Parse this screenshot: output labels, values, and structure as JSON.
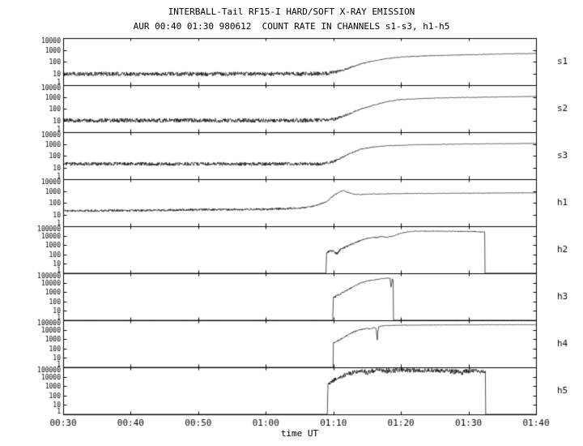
{
  "chart_data": {
    "type": "line",
    "title": "INTERBALL-Tail RF15-I HARD/SOFT X-RAY EMISSION",
    "subtitle": "AUR 00:40 01:30 980612  COUNT RATE IN CHANNELS s1-s3, h1-h5",
    "xlabel": "time UT",
    "line_color": "#000000",
    "background": "#ffffff",
    "x_range_minutes": [
      0,
      70
    ],
    "x_ticks": [
      {
        "t": 0,
        "label": "00:30"
      },
      {
        "t": 10,
        "label": "00:40"
      },
      {
        "t": 20,
        "label": "00:50"
      },
      {
        "t": 30,
        "label": "01:00"
      },
      {
        "t": 40,
        "label": "01:10"
      },
      {
        "t": 50,
        "label": "01:20"
      },
      {
        "t": 60,
        "label": "01:30"
      },
      {
        "t": 70,
        "label": "01:40"
      }
    ],
    "panels": [
      {
        "channel": "s1",
        "y_min": 1,
        "y_max": 10000,
        "yticks": [
          {
            "v": 10000,
            "label": "10000"
          },
          {
            "v": 1000,
            "label": "1000"
          },
          {
            "v": 100,
            "label": "100"
          },
          {
            "v": 10,
            "label": "10"
          },
          {
            "v": 1,
            "label": "1"
          }
        ],
        "points": [
          [
            0,
            9,
            0.18
          ],
          [
            35,
            9,
            0.18
          ],
          [
            39,
            10,
            0.18
          ],
          [
            41,
            15,
            0.12
          ],
          [
            43,
            40,
            0.06
          ],
          [
            45,
            90,
            0.04
          ],
          [
            47,
            150,
            0.03
          ],
          [
            50,
            250,
            0.03
          ],
          [
            55,
            330,
            0.03
          ],
          [
            60,
            380,
            0.025
          ],
          [
            65,
            450,
            0.02
          ],
          [
            70,
            500,
            0.02
          ]
        ]
      },
      {
        "channel": "s2",
        "y_min": 1,
        "y_max": 10000,
        "yticks": [
          {
            "v": 10000,
            "label": "10000"
          },
          {
            "v": 1000,
            "label": "1000"
          },
          {
            "v": 100,
            "label": "100"
          },
          {
            "v": 10,
            "label": "10"
          },
          {
            "v": 1,
            "label": "1"
          }
        ],
        "points": [
          [
            0,
            10,
            0.18
          ],
          [
            36,
            10,
            0.18
          ],
          [
            40,
            12,
            0.15
          ],
          [
            42,
            30,
            0.08
          ],
          [
            44,
            90,
            0.05
          ],
          [
            46,
            200,
            0.04
          ],
          [
            48,
            400,
            0.03
          ],
          [
            50,
            600,
            0.03
          ],
          [
            55,
            800,
            0.025
          ],
          [
            60,
            900,
            0.02
          ],
          [
            65,
            1000,
            0.02
          ],
          [
            70,
            1100,
            0.02
          ]
        ]
      },
      {
        "channel": "s3",
        "y_min": 1,
        "y_max": 10000,
        "yticks": [
          {
            "v": 10000,
            "label": "10000"
          },
          {
            "v": 1000,
            "label": "1000"
          },
          {
            "v": 100,
            "label": "100"
          },
          {
            "v": 10,
            "label": "10"
          },
          {
            "v": 1,
            "label": "1"
          }
        ],
        "points": [
          [
            0,
            20,
            0.15
          ],
          [
            38,
            20,
            0.15
          ],
          [
            40,
            30,
            0.1
          ],
          [
            42,
            120,
            0.05
          ],
          [
            44,
            350,
            0.04
          ],
          [
            46,
            550,
            0.03
          ],
          [
            48,
            700,
            0.03
          ],
          [
            52,
            850,
            0.025
          ],
          [
            60,
            1000,
            0.02
          ],
          [
            70,
            1100,
            0.02
          ]
        ]
      },
      {
        "channel": "h1",
        "y_min": 1,
        "y_max": 10000,
        "yticks": [
          {
            "v": 10000,
            "label": "10000"
          },
          {
            "v": 1000,
            "label": "1000"
          },
          {
            "v": 100,
            "label": "100"
          },
          {
            "v": 10,
            "label": "10"
          },
          {
            "v": 1,
            "label": "1"
          }
        ],
        "points": [
          [
            0,
            20,
            0.1
          ],
          [
            10,
            22,
            0.1
          ],
          [
            20,
            25,
            0.1
          ],
          [
            30,
            28,
            0.1
          ],
          [
            35,
            35,
            0.08
          ],
          [
            37,
            50,
            0.06
          ],
          [
            39,
            120,
            0.05
          ],
          [
            40,
            400,
            0.04
          ],
          [
            41,
            900,
            0.03
          ],
          [
            41.5,
            1100,
            0.03
          ],
          [
            42,
            800,
            0.03
          ],
          [
            43,
            550,
            0.03
          ],
          [
            44,
            500,
            0.03
          ],
          [
            46,
            550,
            0.03
          ],
          [
            50,
            600,
            0.025
          ],
          [
            55,
            620,
            0.02
          ],
          [
            60,
            650,
            0.02
          ],
          [
            70,
            700,
            0.02
          ]
        ]
      },
      {
        "channel": "h2",
        "y_min": 1,
        "y_max": 100000,
        "yticks": [
          {
            "v": 100000,
            "label": "100000"
          },
          {
            "v": 10000,
            "label": "10000"
          },
          {
            "v": 1000,
            "label": "1000"
          },
          {
            "v": 100,
            "label": "100"
          },
          {
            "v": 10,
            "label": "10"
          },
          {
            "v": 1,
            "label": "1"
          }
        ],
        "points": [
          [
            0,
            0,
            0
          ],
          [
            38.9,
            0,
            0
          ],
          [
            39,
            150,
            0.1
          ],
          [
            39.5,
            250,
            0.12
          ],
          [
            40,
            200,
            0.15
          ],
          [
            40.5,
            120,
            0.15
          ],
          [
            41,
            300,
            0.12
          ],
          [
            42,
            700,
            0.1
          ],
          [
            43,
            1500,
            0.08
          ],
          [
            44,
            3000,
            0.08
          ],
          [
            45,
            5000,
            0.06
          ],
          [
            46,
            7000,
            0.06
          ],
          [
            46.5,
            6000,
            0.06
          ],
          [
            47,
            8000,
            0.05
          ],
          [
            48,
            7000,
            0.06
          ],
          [
            49,
            10000,
            0.05
          ],
          [
            50,
            18000,
            0.04
          ],
          [
            51,
            25000,
            0.04
          ],
          [
            52,
            30000,
            0.035
          ],
          [
            55,
            30000,
            0.035
          ],
          [
            58,
            29000,
            0.04
          ],
          [
            60,
            28000,
            0.05
          ],
          [
            61.5,
            26000,
            0.06
          ],
          [
            62.4,
            24000,
            0.06
          ],
          [
            62.45,
            0,
            0
          ],
          [
            70,
            0,
            0
          ]
        ]
      },
      {
        "channel": "h3",
        "y_min": 1,
        "y_max": 100000,
        "yticks": [
          {
            "v": 100000,
            "label": "100000"
          },
          {
            "v": 10000,
            "label": "10000"
          },
          {
            "v": 1000,
            "label": "1000"
          },
          {
            "v": 100,
            "label": "100"
          },
          {
            "v": 10,
            "label": "10"
          },
          {
            "v": 1,
            "label": "1"
          }
        ],
        "points": [
          [
            0,
            0,
            0
          ],
          [
            39.9,
            0,
            0
          ],
          [
            40,
            250,
            0.12
          ],
          [
            40.5,
            400,
            0.1
          ],
          [
            41,
            600,
            0.1
          ],
          [
            42,
            1500,
            0.08
          ],
          [
            43,
            4000,
            0.06
          ],
          [
            44,
            9000,
            0.05
          ],
          [
            45,
            15000,
            0.04
          ],
          [
            46,
            20000,
            0.04
          ],
          [
            47,
            26000,
            0.035
          ],
          [
            48,
            30000,
            0.03
          ],
          [
            48.4,
            28000,
            0.05
          ],
          [
            48.55,
            3000,
            0.3
          ],
          [
            48.7,
            25000,
            0.05
          ],
          [
            48.85,
            20000,
            0.05
          ],
          [
            48.9,
            0,
            0
          ],
          [
            70,
            0,
            0
          ]
        ]
      },
      {
        "channel": "h4",
        "y_min": 1,
        "y_max": 100000,
        "yticks": [
          {
            "v": 100000,
            "label": "100000"
          },
          {
            "v": 10000,
            "label": "10000"
          },
          {
            "v": 1000,
            "label": "1000"
          },
          {
            "v": 100,
            "label": "100"
          },
          {
            "v": 10,
            "label": "10"
          },
          {
            "v": 1,
            "label": "1"
          }
        ],
        "points": [
          [
            0,
            0,
            0
          ],
          [
            39.95,
            0,
            0
          ],
          [
            40,
            400,
            0.1
          ],
          [
            41,
            900,
            0.08
          ],
          [
            42,
            2500,
            0.07
          ],
          [
            43,
            6000,
            0.06
          ],
          [
            44,
            10000,
            0.05
          ],
          [
            45,
            14000,
            0.04
          ],
          [
            45.5,
            12000,
            0.05
          ],
          [
            46,
            16000,
            0.04
          ],
          [
            46.3,
            14000,
            0.05
          ],
          [
            46.5,
            2000,
            0.4
          ],
          [
            46.7,
            20000,
            0.06
          ],
          [
            47,
            24000,
            0.04
          ],
          [
            48,
            28000,
            0.035
          ],
          [
            50,
            30000,
            0.03
          ],
          [
            55,
            32000,
            0.03
          ],
          [
            60,
            33000,
            0.025
          ],
          [
            65,
            34000,
            0.025
          ],
          [
            70,
            34000,
            0.025
          ]
        ]
      },
      {
        "channel": "h5",
        "y_min": 1,
        "y_max": 100000,
        "yticks": [
          {
            "v": 100000,
            "label": "100000"
          },
          {
            "v": 10000,
            "label": "10000"
          },
          {
            "v": 1000,
            "label": "1000"
          },
          {
            "v": 100,
            "label": "100"
          },
          {
            "v": 10,
            "label": "10"
          },
          {
            "v": 1,
            "label": "1"
          }
        ],
        "points": [
          [
            0,
            0,
            0
          ],
          [
            39.1,
            0,
            0
          ],
          [
            39.2,
            1500,
            0.15
          ],
          [
            40,
            4000,
            0.2
          ],
          [
            41,
            9000,
            0.2
          ],
          [
            42,
            18000,
            0.25
          ],
          [
            43,
            30000,
            0.25
          ],
          [
            44,
            40000,
            0.2
          ],
          [
            45,
            30000,
            0.3
          ],
          [
            46,
            45000,
            0.25
          ],
          [
            47,
            50000,
            0.2
          ],
          [
            48,
            40000,
            0.3
          ],
          [
            50,
            50000,
            0.2
          ],
          [
            52,
            45000,
            0.25
          ],
          [
            54,
            50000,
            0.2
          ],
          [
            56,
            45000,
            0.25
          ],
          [
            58,
            35000,
            0.3
          ],
          [
            59,
            30000,
            0.3
          ],
          [
            60,
            40000,
            0.25
          ],
          [
            61,
            45000,
            0.2
          ],
          [
            62,
            35000,
            0.25
          ],
          [
            62.5,
            30000,
            0.2
          ],
          [
            62.55,
            0,
            0
          ],
          [
            70,
            0,
            0
          ]
        ]
      }
    ]
  }
}
